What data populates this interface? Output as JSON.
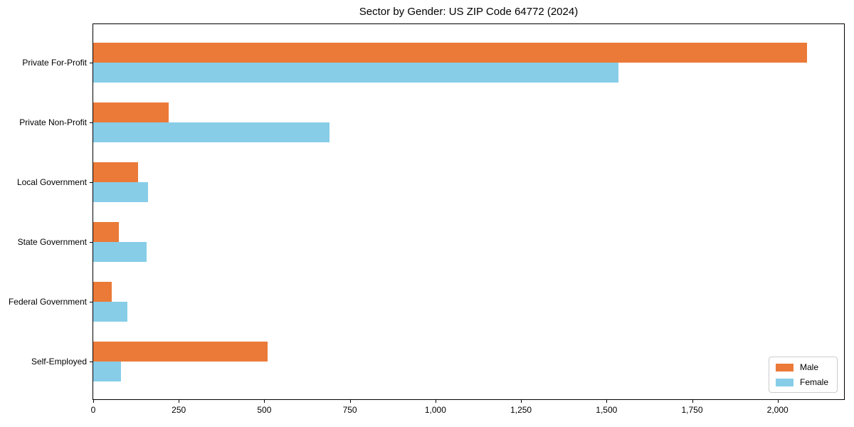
{
  "chart_data": {
    "type": "bar",
    "orientation": "horizontal",
    "title": "Sector by Gender: US ZIP Code 64772 (2024)",
    "categories": [
      "Private For-Profit",
      "Private Non-Profit",
      "Local Government",
      "State Government",
      "Federal Government",
      "Self-Employed"
    ],
    "series": [
      {
        "name": "Male",
        "color": "#EB7A38",
        "values": [
          2085,
          220,
          130,
          75,
          55,
          510
        ]
      },
      {
        "name": "Female",
        "color": "#87CDE8",
        "values": [
          1535,
          690,
          160,
          155,
          100,
          80
        ]
      }
    ],
    "xlabel": "",
    "ylabel": "",
    "xlim": [
      0,
      2194
    ],
    "xticks": [
      0,
      250,
      500,
      750,
      1000,
      1250,
      1500,
      1750,
      2000
    ],
    "xtick_labels": [
      "0",
      "250",
      "500",
      "750",
      "1,000",
      "1,250",
      "1,500",
      "1,750",
      "2,000"
    ],
    "grid": false,
    "legend_position": "lower right"
  }
}
